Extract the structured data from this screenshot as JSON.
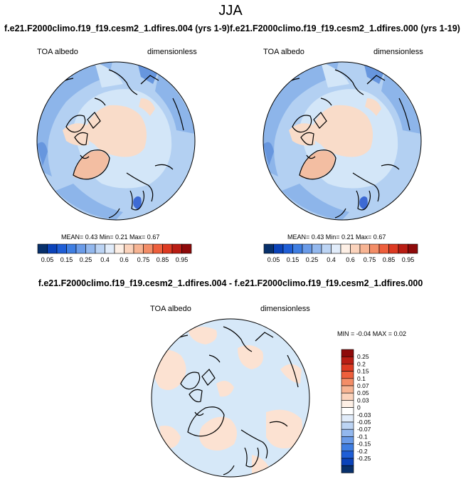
{
  "season": "JJA",
  "colors": {
    "land": "#f9dcc9",
    "greenland": "#f3bea2",
    "ocean_light": "#d3e6f8",
    "ocean_mid": "#b3d0f2",
    "ocean_dark": "#8db5ea",
    "ocean_deep": "#6796de",
    "baltic": "#3d6ad4",
    "neutral": "#f4f9fd",
    "diff_blue": "#d6e8f8",
    "diff_pink": "#fce2d2"
  },
  "top_left": {
    "title": "f.e21.F2000climo.f19_f19.cesm2_1.dfires.004 (yrs 1-9)",
    "field": "TOA albedo",
    "units": "dimensionless",
    "stats": "MEAN=  0.43  Min=  0.21  Max=  0.67"
  },
  "top_right": {
    "title": "f.e21.F2000climo.f19_f19.cesm2_1.dfires.000 (yrs 1-19)",
    "field": "TOA albedo",
    "units": "dimensionless",
    "stats": "MEAN=  0.43  Min=  0.21  Max=  0.67"
  },
  "main_colorbar": {
    "colors": [
      "#08306b",
      "#0b43b9",
      "#1f5ed6",
      "#3f7ee2",
      "#6a9be8",
      "#93b8ee",
      "#bcd4f4",
      "#e1ecfa",
      "#fdefe5",
      "#fbd3bc",
      "#f7b493",
      "#f38d67",
      "#ee5f3c",
      "#dd3a22",
      "#b91d14",
      "#8e0a0a"
    ],
    "labels": [
      "0.05",
      "0.15",
      "0.25",
      "0.4",
      "0.6",
      "0.75",
      "0.85",
      "0.95"
    ]
  },
  "diff": {
    "title": "f.e21.F2000climo.f19_f19.cesm2_1.dfires.004 - f.e21.F2000climo.f19_f19.cesm2_1.dfires.000",
    "field": "TOA albedo",
    "units": "dimensionless",
    "stats": "MIN = -0.04  MAX =  0.02"
  },
  "diff_colorbar": {
    "colors": [
      "#8e0a0a",
      "#b91d14",
      "#dd3a22",
      "#ee5f3c",
      "#f38d67",
      "#f7b493",
      "#fbd3bc",
      "#fdefe5",
      "#ffffff",
      "#e1ecfa",
      "#bcd4f4",
      "#93b8ee",
      "#6a9be8",
      "#3f7ee2",
      "#1f5ed6",
      "#0b43b9",
      "#08306b"
    ],
    "labels": [
      "0.25",
      "0.2",
      "0.15",
      "0.1",
      "0.07",
      "0.05",
      "0.03",
      "0",
      "-0.03",
      "-0.05",
      "-0.07",
      "-0.1",
      "-0.15",
      "-0.2",
      "-0.25"
    ]
  }
}
